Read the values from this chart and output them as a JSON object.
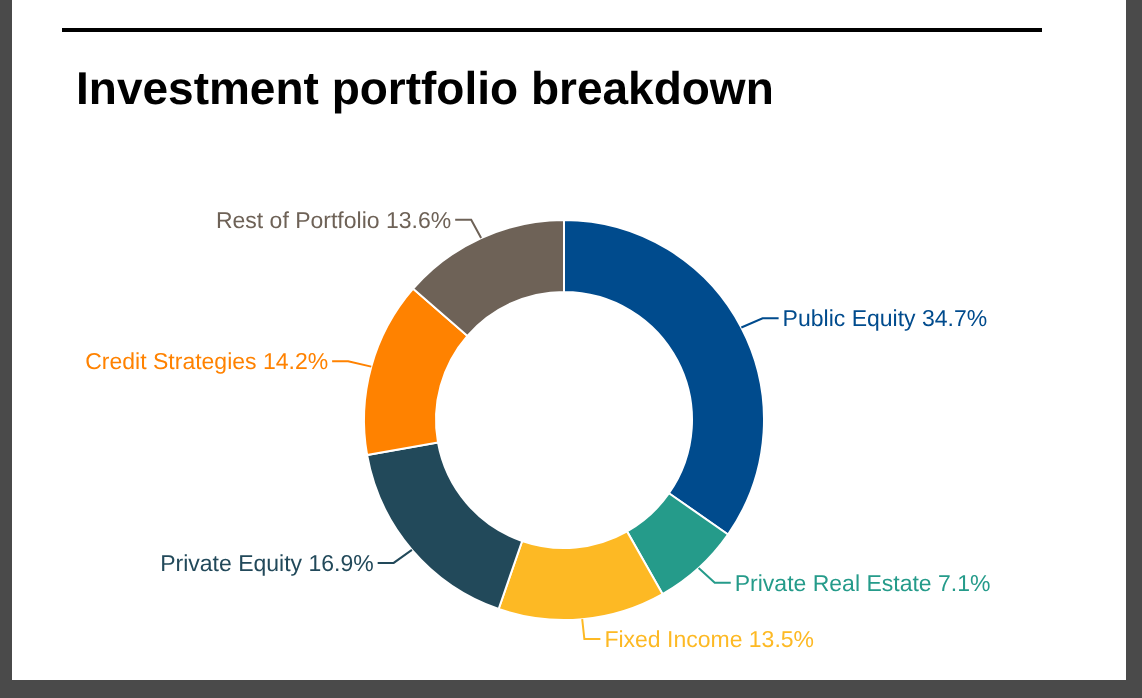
{
  "chart_data": {
    "type": "donut",
    "title": "Investment portfolio breakdown",
    "categories": [
      "Public Equity",
      "Private Real Estate",
      "Fixed Income",
      "Private Equity",
      "Credit Strategies",
      "Rest of Portfolio"
    ],
    "values": [
      34.7,
      7.1,
      13.5,
      16.9,
      14.2,
      13.6
    ],
    "value_labels": [
      "34.7%",
      "7.1%",
      "13.5%",
      "16.9%",
      "14.2%",
      "13.6%"
    ],
    "colors": [
      "#004b8d",
      "#259b8a",
      "#fdb924",
      "#22495a",
      "#ff8200",
      "#6e6257"
    ]
  }
}
